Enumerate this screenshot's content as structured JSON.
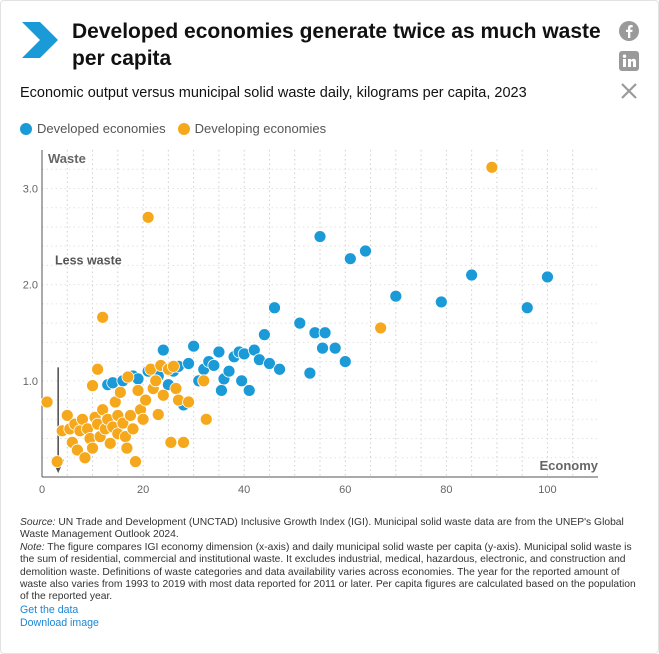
{
  "header": {
    "title": "Developed economies generate twice as much waste per capita",
    "subtitle": "Economic output versus municipal solid waste daily, kilograms per capita, 2023",
    "accent": "#1a9ad6",
    "social_icons": [
      "facebook-icon",
      "linkedin-icon",
      "x-icon"
    ]
  },
  "legend": [
    {
      "label": "Developed economies",
      "color": "#1a9ad6"
    },
    {
      "label": "Developing economies",
      "color": "#f5a81c"
    }
  ],
  "chart_data": {
    "type": "scatter",
    "xlabel": "Economy",
    "ylabel": "Waste",
    "xlim": [
      0,
      110
    ],
    "ylim": [
      0,
      3.4
    ],
    "xticks": [
      0,
      20,
      40,
      60,
      80,
      100
    ],
    "yticks": [
      1.0,
      2.0,
      3.0
    ],
    "xtick_labels": [
      "0",
      "20",
      "40",
      "60",
      "80",
      "100"
    ],
    "ytick_labels": [
      "1.0",
      "2.0",
      "3.0"
    ],
    "grid": "dotted vertical",
    "legend_position": "top-left",
    "annotation": "Less waste",
    "series": [
      {
        "name": "Developed economies",
        "color": "#1a9ad6",
        "points": [
          [
            13,
            0.96
          ],
          [
            14,
            0.98
          ],
          [
            16,
            1.0
          ],
          [
            18,
            1.05
          ],
          [
            19,
            1.02
          ],
          [
            21,
            1.1
          ],
          [
            23,
            1.05
          ],
          [
            24,
            1.32
          ],
          [
            25,
            0.96
          ],
          [
            26,
            1.1
          ],
          [
            27,
            1.15
          ],
          [
            28,
            0.75
          ],
          [
            29,
            1.18
          ],
          [
            30,
            1.36
          ],
          [
            31,
            1.0
          ],
          [
            32,
            1.12
          ],
          [
            33,
            1.2
          ],
          [
            34,
            1.16
          ],
          [
            35,
            1.3
          ],
          [
            35.5,
            0.9
          ],
          [
            36,
            1.02
          ],
          [
            37,
            1.1
          ],
          [
            38,
            1.25
          ],
          [
            39,
            1.3
          ],
          [
            39.5,
            1.0
          ],
          [
            40,
            1.28
          ],
          [
            41,
            0.9
          ],
          [
            42,
            1.32
          ],
          [
            43,
            1.22
          ],
          [
            44,
            1.48
          ],
          [
            45,
            1.18
          ],
          [
            46,
            1.76
          ],
          [
            47,
            1.12
          ],
          [
            51,
            1.6
          ],
          [
            53,
            1.08
          ],
          [
            54,
            1.5
          ],
          [
            55,
            2.5
          ],
          [
            55.5,
            1.34
          ],
          [
            56,
            1.5
          ],
          [
            58,
            1.34
          ],
          [
            60,
            1.2
          ],
          [
            61,
            2.27
          ],
          [
            64,
            2.35
          ],
          [
            70,
            1.88
          ],
          [
            79,
            1.82
          ],
          [
            85,
            2.1
          ],
          [
            96,
            1.76
          ],
          [
            100,
            2.08
          ]
        ]
      },
      {
        "name": "Developing economies",
        "color": "#f5a81c",
        "points": [
          [
            1,
            0.78
          ],
          [
            3,
            0.16
          ],
          [
            4,
            0.48
          ],
          [
            5,
            0.64
          ],
          [
            5.5,
            0.5
          ],
          [
            6,
            0.36
          ],
          [
            6.5,
            0.55
          ],
          [
            7,
            0.28
          ],
          [
            7.5,
            0.48
          ],
          [
            8,
            0.6
          ],
          [
            8.5,
            0.2
          ],
          [
            9,
            0.5
          ],
          [
            9.5,
            0.4
          ],
          [
            10,
            0.95
          ],
          [
            10.5,
            0.62
          ],
          [
            10,
            0.3
          ],
          [
            11,
            0.55
          ],
          [
            11,
            1.12
          ],
          [
            11.5,
            0.42
          ],
          [
            12,
            0.7
          ],
          [
            12,
            1.66
          ],
          [
            12.5,
            0.5
          ],
          [
            13,
            0.6
          ],
          [
            13.5,
            0.35
          ],
          [
            14,
            0.52
          ],
          [
            14.5,
            0.78
          ],
          [
            15,
            0.45
          ],
          [
            15,
            0.64
          ],
          [
            15.5,
            0.88
          ],
          [
            16,
            0.56
          ],
          [
            16.5,
            0.42
          ],
          [
            16.8,
            0.3
          ],
          [
            17,
            1.04
          ],
          [
            17.5,
            0.64
          ],
          [
            18,
            0.5
          ],
          [
            18.5,
            0.16
          ],
          [
            19,
            0.9
          ],
          [
            19.5,
            0.7
          ],
          [
            20,
            0.6
          ],
          [
            20.5,
            0.8
          ],
          [
            21,
            2.7
          ],
          [
            21.5,
            1.12
          ],
          [
            22,
            0.92
          ],
          [
            22.5,
            1.0
          ],
          [
            23,
            0.65
          ],
          [
            23.5,
            1.16
          ],
          [
            24,
            0.85
          ],
          [
            25,
            1.12
          ],
          [
            25.5,
            0.36
          ],
          [
            26,
            1.15
          ],
          [
            26.5,
            0.92
          ],
          [
            27,
            0.8
          ],
          [
            28,
            0.36
          ],
          [
            29,
            0.78
          ],
          [
            32,
            1.0
          ],
          [
            32.5,
            0.6
          ],
          [
            67,
            1.55
          ],
          [
            89,
            3.22
          ]
        ]
      }
    ]
  },
  "footer": {
    "source_label": "Source:",
    "source_text": " UN Trade and Development (UNCTAD) Inclusive Growth Index (IGI). Municipal solid waste data are from the UNEP's Global Waste Management Outlook 2024.",
    "note_label": "Note:",
    "note_text": " The figure compares IGI economy dimension (x-axis) and daily municipal solid waste per capita (y-axis). Municipal solid waste is the sum of residential, commercial and institutional waste. It excludes industrial, medical, hazardous, electronic, and construction and demolition waste. Definitions of waste categories and data availability varies across economies. The year for the reported amount of waste also varies from 1993 to 2019 with most data reported for 2011 or later. Per capita figures are calculated based on the population of the reported year.",
    "get_data": "Get the data",
    "download_image": "Download image"
  }
}
